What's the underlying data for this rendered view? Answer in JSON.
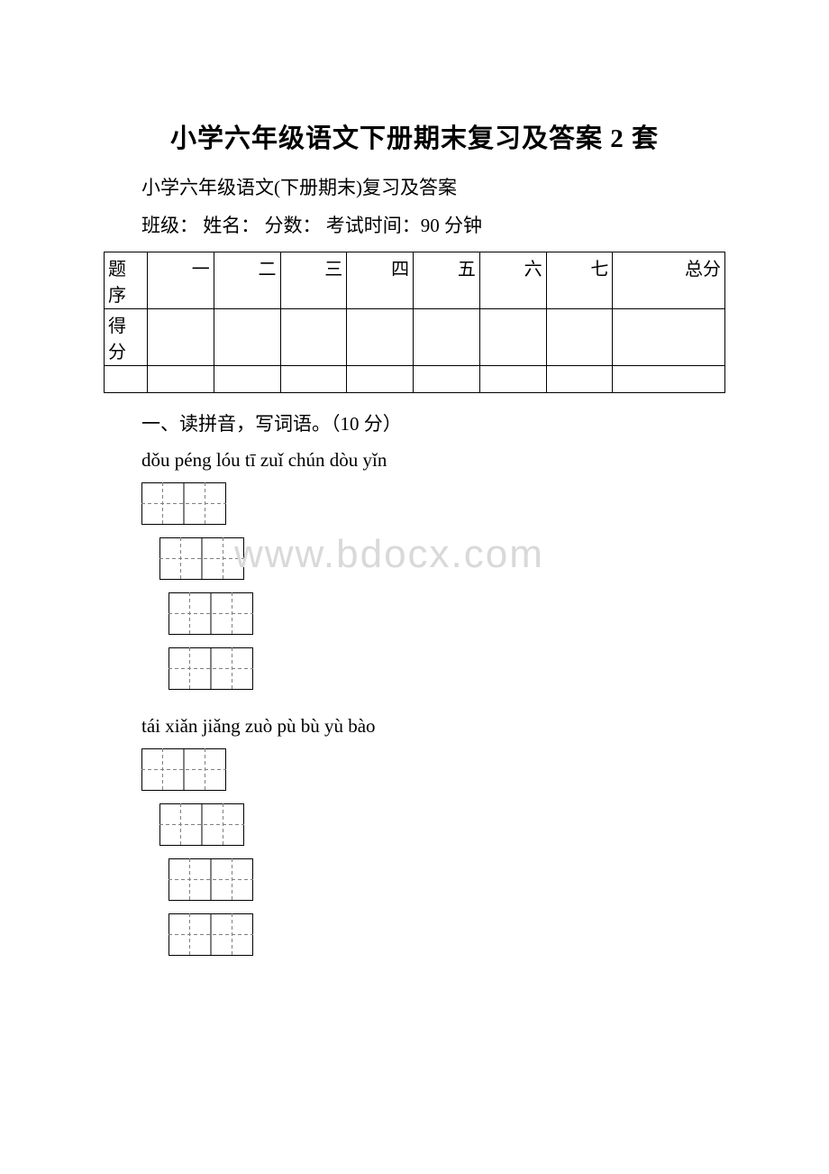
{
  "title": "小学六年级语文下册期末复习及答案 2 套",
  "subtitle": "小学六年级语文(下册期末)复习及答案",
  "meta_line": "班级：  姓名：  分数：   考试时间：90 分钟",
  "watermark": "www.bdocx.com",
  "score_table": {
    "row1_label": "题序",
    "row1_cells": [
      "一",
      "二",
      "三",
      "四",
      "五",
      "六",
      "七",
      "总分"
    ],
    "row2_label": "得分",
    "border_color": "#000000",
    "font_size": 20
  },
  "section1": {
    "heading": "一、读拼音，写词语。（10 分）",
    "pinyin_line1": "dǒu péng   lóu tī   zuǐ chún   dòu yǐn",
    "pinyin_line2": "tái xiǎn   jiǎng zuò   pù bù   yù bào"
  },
  "tian_zi_ge": {
    "cell_size": 47,
    "border_color": "#000000",
    "dash_color": "#808080",
    "dash_pattern": "4,3",
    "stroke_width": 1,
    "boxes_per_row": 2,
    "rows_group1": 4,
    "rows_group2": 4
  },
  "colors": {
    "background": "#ffffff",
    "text": "#000000",
    "watermark": "#d9d9d9"
  }
}
